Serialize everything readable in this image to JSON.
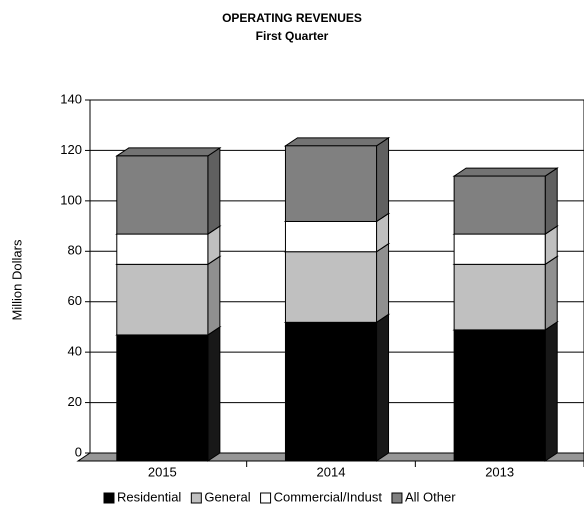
{
  "chart_data": {
    "type": "bar3d_stacked",
    "title": "OPERATING REVENUES",
    "subtitle": "First Quarter",
    "y_label": "Million Dollars",
    "categories": [
      "2015",
      "2014",
      "2013"
    ],
    "series": [
      {
        "name": "Residential",
        "color": "#000000",
        "values": [
          50,
          55,
          52
        ]
      },
      {
        "name": "General",
        "color": "#c0c0c0",
        "values": [
          28,
          28,
          26
        ]
      },
      {
        "name": "Commercial/Indust",
        "color": "#ffffff",
        "values": [
          12,
          12,
          12
        ]
      },
      {
        "name": "All Other",
        "color": "#808080",
        "values": [
          31,
          30,
          23
        ]
      }
    ],
    "ylim": [
      0,
      140
    ],
    "yticks": [
      0,
      20,
      40,
      60,
      80,
      100,
      120,
      140
    ],
    "grid": true
  }
}
